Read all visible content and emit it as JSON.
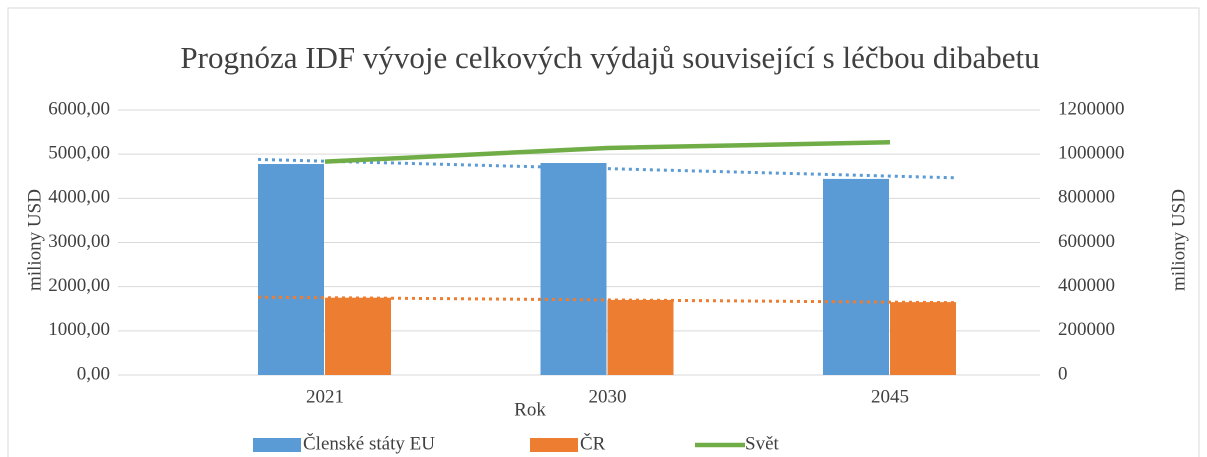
{
  "chart_data": {
    "type": "bar",
    "title": "Prognóza IDF vývoje celkových výdajů související s léčbou dibabetu",
    "categories": [
      "2021",
      "2030",
      "2045"
    ],
    "x_label": "Rok",
    "y_label": "miliony USD",
    "y2_label": "miliony USD",
    "series": [
      {
        "name": "Členské státy EU",
        "color": "#5b9bd5",
        "type": "bar",
        "values": [
          4777,
          4800,
          4440
        ]
      },
      {
        "name": "ČR",
        "color": "#ed7d31",
        "type": "bar",
        "values": [
          1750,
          1700,
          1650
        ]
      },
      {
        "name": "Svět",
        "color": "#70ad47",
        "type": "line",
        "axis": "y2",
        "values": [
          966000,
          1028000,
          1054000
        ]
      }
    ],
    "ylim": [
      0,
      6000
    ],
    "yticks": [
      {
        "value": 0,
        "label": "0,00"
      },
      {
        "value": 1000,
        "label": "1000,00"
      },
      {
        "value": 2000,
        "label": "2000,00"
      },
      {
        "value": 3000,
        "label": "3000,00"
      },
      {
        "value": 4000,
        "label": "4000,00"
      },
      {
        "value": 5000,
        "label": "5000,00"
      },
      {
        "value": 6000,
        "label": "6000,00"
      }
    ],
    "y2lim": [
      0,
      1200000
    ],
    "y2ticks": [
      0,
      200000,
      400000,
      600000,
      800000,
      1000000,
      1200000
    ],
    "grid": true,
    "legend": "bottom"
  }
}
